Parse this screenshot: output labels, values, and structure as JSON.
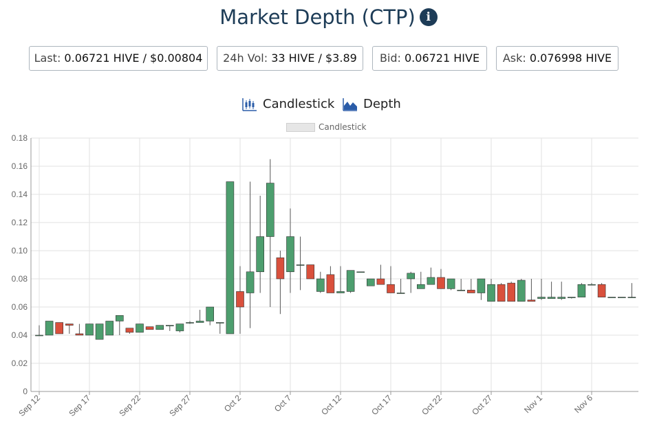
{
  "header": {
    "title": "Market Depth (CTP)",
    "info_icon": "info-icon"
  },
  "stats": {
    "last": {
      "label": "Last:",
      "value": "0.06721 HIVE / $0.00804"
    },
    "vol": {
      "label": "24h Vol:",
      "value": "33 HIVE / $3.89"
    },
    "bid": {
      "label": "Bid:",
      "value": "0.06721 HIVE"
    },
    "ask": {
      "label": "Ask:",
      "value": "0.076998 HIVE"
    }
  },
  "tabs": {
    "candlestick": {
      "label": "Candlestick",
      "icon": "candlestick-icon"
    },
    "depth": {
      "label": "Depth",
      "icon": "area-chart-icon"
    }
  },
  "colors": {
    "up": "#4d9e6e",
    "down": "#d9503c",
    "accent": "#1d3c57",
    "icon": "#2a5ca8"
  },
  "chart_data": {
    "type": "candlestick",
    "legend": [
      "Candlestick"
    ],
    "legend_position": "top-center",
    "grid": true,
    "ylim": [
      0,
      0.18
    ],
    "yticks": [
      "0",
      "0.02",
      "0.04",
      "0.06",
      "0.08",
      "0.10",
      "0.12",
      "0.14",
      "0.16",
      "0.18"
    ],
    "xlim": [
      "Sep 12",
      "Nov 11"
    ],
    "xticks": [
      "Sep 12",
      "Sep 17",
      "Sep 22",
      "Sep 27",
      "Oct 2",
      "Oct 7",
      "Oct 12",
      "Oct 17",
      "Oct 22",
      "Oct 27",
      "Nov 1",
      "Nov 6"
    ],
    "candles": [
      {
        "date": "Sep 12",
        "open": 0.04,
        "high": 0.047,
        "low": 0.04,
        "close": 0.04
      },
      {
        "date": "Sep 13",
        "open": 0.04,
        "high": 0.05,
        "low": 0.04,
        "close": 0.05
      },
      {
        "date": "Sep 14",
        "open": 0.049,
        "high": 0.049,
        "low": 0.041,
        "close": 0.041
      },
      {
        "date": "Sep 15",
        "open": 0.048,
        "high": 0.048,
        "low": 0.041,
        "close": 0.047
      },
      {
        "date": "Sep 16",
        "open": 0.041,
        "high": 0.048,
        "low": 0.04,
        "close": 0.04
      },
      {
        "date": "Sep 17",
        "open": 0.04,
        "high": 0.048,
        "low": 0.04,
        "close": 0.048
      },
      {
        "date": "Sep 18",
        "open": 0.037,
        "high": 0.048,
        "low": 0.037,
        "close": 0.048
      },
      {
        "date": "Sep 19",
        "open": 0.04,
        "high": 0.05,
        "low": 0.04,
        "close": 0.05
      },
      {
        "date": "Sep 20",
        "open": 0.05,
        "high": 0.054,
        "low": 0.04,
        "close": 0.054
      },
      {
        "date": "Sep 21",
        "open": 0.045,
        "high": 0.045,
        "low": 0.041,
        "close": 0.042
      },
      {
        "date": "Sep 22",
        "open": 0.042,
        "high": 0.048,
        "low": 0.042,
        "close": 0.048
      },
      {
        "date": "Sep 23",
        "open": 0.046,
        "high": 0.046,
        "low": 0.044,
        "close": 0.044
      },
      {
        "date": "Sep 24",
        "open": 0.044,
        "high": 0.047,
        "low": 0.044,
        "close": 0.047
      },
      {
        "date": "Sep 25",
        "open": 0.047,
        "high": 0.047,
        "low": 0.043,
        "close": 0.047
      },
      {
        "date": "Sep 26",
        "open": 0.043,
        "high": 0.048,
        "low": 0.042,
        "close": 0.048
      },
      {
        "date": "Sep 27",
        "open": 0.049,
        "high": 0.05,
        "low": 0.048,
        "close": 0.049
      },
      {
        "date": "Sep 28",
        "open": 0.049,
        "high": 0.058,
        "low": 0.049,
        "close": 0.05
      },
      {
        "date": "Sep 29",
        "open": 0.05,
        "high": 0.06,
        "low": 0.047,
        "close": 0.06
      },
      {
        "date": "Sep 30",
        "open": 0.049,
        "high": 0.049,
        "low": 0.041,
        "close": 0.049
      },
      {
        "date": "Oct 1",
        "open": 0.041,
        "high": 0.149,
        "low": 0.041,
        "close": 0.149
      },
      {
        "date": "Oct 2",
        "open": 0.071,
        "high": 0.089,
        "low": 0.041,
        "close": 0.06
      },
      {
        "date": "Oct 3",
        "open": 0.07,
        "high": 0.149,
        "low": 0.045,
        "close": 0.085
      },
      {
        "date": "Oct 4",
        "open": 0.085,
        "high": 0.139,
        "low": 0.07,
        "close": 0.11
      },
      {
        "date": "Oct 5",
        "open": 0.11,
        "high": 0.165,
        "low": 0.06,
        "close": 0.148
      },
      {
        "date": "Oct 6",
        "open": 0.095,
        "high": 0.1,
        "low": 0.055,
        "close": 0.08
      },
      {
        "date": "Oct 7",
        "open": 0.085,
        "high": 0.13,
        "low": 0.07,
        "close": 0.11
      },
      {
        "date": "Oct 8",
        "open": 0.09,
        "high": 0.11,
        "low": 0.072,
        "close": 0.09
      },
      {
        "date": "Oct 9",
        "open": 0.09,
        "high": 0.09,
        "low": 0.08,
        "close": 0.08
      },
      {
        "date": "Oct 10",
        "open": 0.071,
        "high": 0.085,
        "low": 0.07,
        "close": 0.08
      },
      {
        "date": "Oct 11",
        "open": 0.083,
        "high": 0.089,
        "low": 0.07,
        "close": 0.07
      },
      {
        "date": "Oct 12",
        "open": 0.07,
        "high": 0.089,
        "low": 0.07,
        "close": 0.071
      },
      {
        "date": "Oct 13",
        "open": 0.071,
        "high": 0.086,
        "low": 0.07,
        "close": 0.086
      },
      {
        "date": "Oct 14",
        "open": 0.085,
        "high": 0.085,
        "low": 0.085,
        "close": 0.085
      },
      {
        "date": "Oct 15",
        "open": 0.075,
        "high": 0.08,
        "low": 0.075,
        "close": 0.08
      },
      {
        "date": "Oct 16",
        "open": 0.08,
        "high": 0.09,
        "low": 0.076,
        "close": 0.076
      },
      {
        "date": "Oct 17",
        "open": 0.076,
        "high": 0.089,
        "low": 0.07,
        "close": 0.07
      },
      {
        "date": "Oct 18",
        "open": 0.07,
        "high": 0.08,
        "low": 0.07,
        "close": 0.07
      },
      {
        "date": "Oct 19",
        "open": 0.08,
        "high": 0.085,
        "low": 0.07,
        "close": 0.084
      },
      {
        "date": "Oct 20",
        "open": 0.073,
        "high": 0.085,
        "low": 0.073,
        "close": 0.076
      },
      {
        "date": "Oct 21",
        "open": 0.076,
        "high": 0.088,
        "low": 0.076,
        "close": 0.081
      },
      {
        "date": "Oct 22",
        "open": 0.081,
        "high": 0.087,
        "low": 0.073,
        "close": 0.073
      },
      {
        "date": "Oct 23",
        "open": 0.073,
        "high": 0.08,
        "low": 0.072,
        "close": 0.08
      },
      {
        "date": "Oct 24",
        "open": 0.072,
        "high": 0.08,
        "low": 0.072,
        "close": 0.072
      },
      {
        "date": "Oct 25",
        "open": 0.072,
        "high": 0.08,
        "low": 0.07,
        "close": 0.07
      },
      {
        "date": "Oct 26",
        "open": 0.07,
        "high": 0.08,
        "low": 0.065,
        "close": 0.08
      },
      {
        "date": "Oct 27",
        "open": 0.064,
        "high": 0.08,
        "low": 0.064,
        "close": 0.076
      },
      {
        "date": "Oct 28",
        "open": 0.076,
        "high": 0.077,
        "low": 0.064,
        "close": 0.064
      },
      {
        "date": "Oct 29",
        "open": 0.077,
        "high": 0.078,
        "low": 0.064,
        "close": 0.064
      },
      {
        "date": "Oct 30",
        "open": 0.064,
        "high": 0.08,
        "low": 0.064,
        "close": 0.079
      },
      {
        "date": "Oct 31",
        "open": 0.065,
        "high": 0.08,
        "low": 0.064,
        "close": 0.064
      },
      {
        "date": "Nov 1",
        "open": 0.066,
        "high": 0.08,
        "low": 0.065,
        "close": 0.067
      },
      {
        "date": "Nov 2",
        "open": 0.066,
        "high": 0.078,
        "low": 0.066,
        "close": 0.067
      },
      {
        "date": "Nov 3",
        "open": 0.066,
        "high": 0.078,
        "low": 0.065,
        "close": 0.067
      },
      {
        "date": "Nov 4",
        "open": 0.067,
        "high": 0.067,
        "low": 0.066,
        "close": 0.067
      },
      {
        "date": "Nov 5",
        "open": 0.067,
        "high": 0.077,
        "low": 0.067,
        "close": 0.076
      },
      {
        "date": "Nov 6",
        "open": 0.076,
        "high": 0.077,
        "low": 0.076,
        "close": 0.076
      },
      {
        "date": "Nov 7",
        "open": 0.076,
        "high": 0.077,
        "low": 0.067,
        "close": 0.067
      },
      {
        "date": "Nov 8",
        "open": 0.067,
        "high": 0.067,
        "low": 0.067,
        "close": 0.067
      },
      {
        "date": "Nov 9",
        "open": 0.067,
        "high": 0.067,
        "low": 0.067,
        "close": 0.067
      },
      {
        "date": "Nov 10",
        "open": 0.067,
        "high": 0.077,
        "low": 0.067,
        "close": 0.067
      }
    ]
  }
}
